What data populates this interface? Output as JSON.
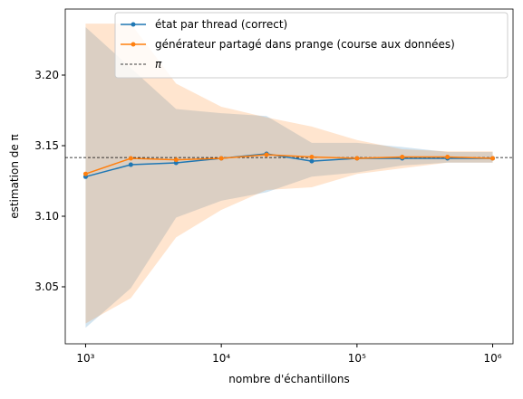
{
  "chart_data": {
    "type": "line",
    "xlabel": "nombre d'échantillons",
    "ylabel": "estimation de π",
    "xscale": "log",
    "x": [
      1000,
      2154,
      4642,
      10000,
      21544,
      46416,
      100000,
      215443,
      464159,
      1000000
    ],
    "series": [
      {
        "name": "état par thread (correct)",
        "color": "#1f77b4",
        "values": [
          3.128,
          3.1365,
          3.1378,
          3.141,
          3.1442,
          3.139,
          3.141,
          3.141,
          3.141,
          3.141
        ],
        "lower": [
          3.021,
          3.049,
          3.099,
          3.111,
          3.117,
          3.128,
          3.131,
          3.136,
          3.138,
          3.138
        ],
        "upper": [
          3.234,
          3.205,
          3.176,
          3.173,
          3.171,
          3.152,
          3.152,
          3.149,
          3.1455,
          3.1455
        ]
      },
      {
        "name": "générateur partagé dans prange (course aux données)",
        "color": "#ff7f0e",
        "values": [
          3.13,
          3.141,
          3.14,
          3.141,
          3.1436,
          3.142,
          3.141,
          3.142,
          3.142,
          3.141
        ],
        "lower": [
          3.024,
          3.042,
          3.085,
          3.1045,
          3.1186,
          3.1205,
          3.13,
          3.134,
          3.138,
          3.138
        ],
        "upper": [
          3.2365,
          3.2365,
          3.194,
          3.1776,
          3.17,
          3.1635,
          3.154,
          3.1474,
          3.146,
          3.146
        ]
      }
    ],
    "reference": {
      "name": "π",
      "value": 3.141592653589793,
      "color": "#000000"
    },
    "xlim": [
      707.9,
      1412537.5
    ],
    "ylim": [
      3.0096,
      3.2468
    ],
    "xticks": [
      {
        "value": 1000,
        "label": "10³"
      },
      {
        "value": 10000,
        "label": "10⁴"
      },
      {
        "value": 100000,
        "label": "10⁵"
      },
      {
        "value": 1000000,
        "label": "10⁶"
      }
    ],
    "yticks": [
      3.05,
      {
        "value": 3.1,
        "label": "3.10"
      },
      3.15,
      {
        "value": 3.2,
        "label": "3.20"
      }
    ],
    "legend": "upper right"
  }
}
